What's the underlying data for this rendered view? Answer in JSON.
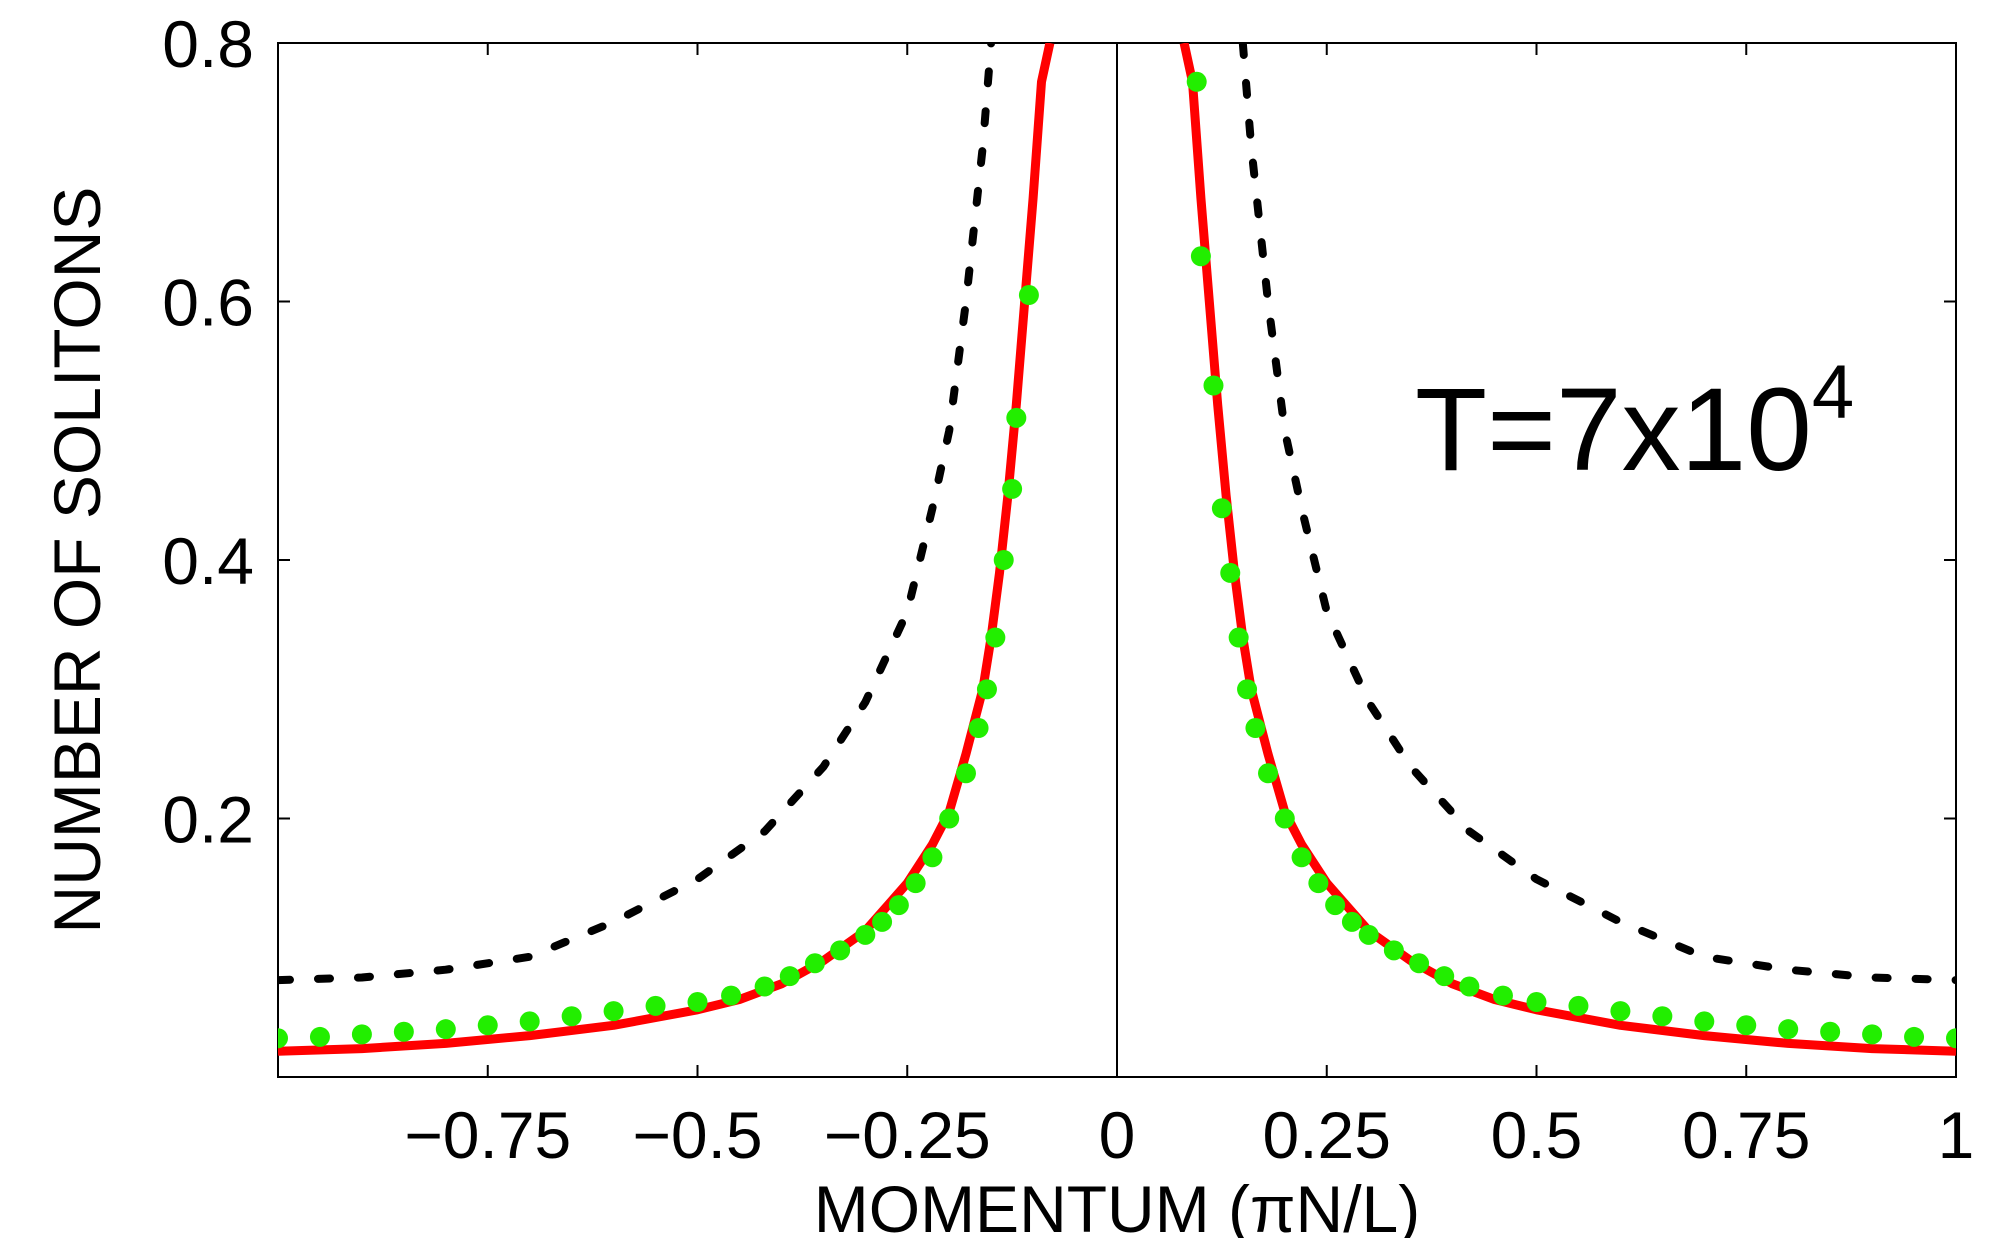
{
  "chart_data": {
    "type": "line",
    "xlabel": "MOMENTUM (πN/L)",
    "ylabel": "NUMBER OF SOLITONS",
    "annotation": {
      "base": "T=7x10",
      "exponent": "4"
    },
    "xlim": [
      -1,
      1
    ],
    "ylim": [
      0.0,
      0.8
    ],
    "x_ticks": [
      -0.75,
      -0.5,
      -0.25,
      0,
      0.25,
      0.5,
      0.75,
      1
    ],
    "x_tick_labels": [
      "−0.75",
      "−0.5",
      "−0.25",
      "0",
      "0.25",
      "0.5",
      "0.75",
      "1"
    ],
    "y_ticks": [
      0.2,
      0.4,
      0.6,
      0.8
    ],
    "y_tick_labels": [
      "0.2",
      "0.4",
      "0.6",
      "0.8"
    ],
    "grid": false,
    "center_line_x": 0,
    "colors": {
      "red": "#ff0000",
      "green": "#22ee00",
      "black": "#000000"
    },
    "series": [
      {
        "style": "dashed",
        "color": "#000000",
        "x": [
          -1.0,
          -0.9,
          -0.8,
          -0.7,
          -0.6,
          -0.5,
          -0.42,
          -0.35,
          -0.3,
          -0.25,
          -0.22,
          -0.2,
          -0.18,
          -0.16,
          -0.15,
          0.15,
          0.16,
          0.18,
          0.2,
          0.22,
          0.25,
          0.3,
          0.35,
          0.42,
          0.5,
          0.6,
          0.7,
          0.8,
          0.9,
          1.0
        ],
        "y": [
          0.075,
          0.077,
          0.083,
          0.093,
          0.12,
          0.153,
          0.19,
          0.24,
          0.29,
          0.36,
          0.44,
          0.5,
          0.6,
          0.72,
          0.8,
          0.8,
          0.72,
          0.6,
          0.5,
          0.44,
          0.36,
          0.29,
          0.24,
          0.19,
          0.153,
          0.12,
          0.093,
          0.083,
          0.077,
          0.075
        ]
      },
      {
        "style": "solid",
        "color": "#ff0000",
        "x": [
          -1.0,
          -0.9,
          -0.8,
          -0.7,
          -0.6,
          -0.5,
          -0.45,
          -0.4,
          -0.35,
          -0.3,
          -0.25,
          -0.22,
          -0.2,
          -0.18,
          -0.16,
          -0.15,
          -0.14,
          -0.13,
          -0.12,
          -0.11,
          -0.1,
          -0.09,
          -0.08,
          0.08,
          0.09,
          0.1,
          0.11,
          0.12,
          0.13,
          0.14,
          0.15,
          0.16,
          0.18,
          0.2,
          0.22,
          0.25,
          0.3,
          0.35,
          0.4,
          0.45,
          0.5,
          0.6,
          0.7,
          0.8,
          0.9,
          1.0
        ],
        "y": [
          0.02,
          0.022,
          0.026,
          0.032,
          0.04,
          0.052,
          0.06,
          0.072,
          0.09,
          0.113,
          0.15,
          0.18,
          0.205,
          0.25,
          0.3,
          0.34,
          0.39,
          0.45,
          0.52,
          0.6,
          0.68,
          0.77,
          0.8,
          0.8,
          0.77,
          0.68,
          0.6,
          0.52,
          0.45,
          0.39,
          0.34,
          0.3,
          0.25,
          0.205,
          0.18,
          0.15,
          0.113,
          0.09,
          0.072,
          0.06,
          0.052,
          0.04,
          0.032,
          0.026,
          0.022,
          0.02
        ]
      },
      {
        "style": "markers",
        "color": "#22ee00",
        "x": [
          -1.0,
          -0.95,
          -0.9,
          -0.85,
          -0.8,
          -0.75,
          -0.7,
          -0.65,
          -0.6,
          -0.55,
          -0.5,
          -0.46,
          -0.42,
          -0.39,
          -0.36,
          -0.33,
          -0.3,
          -0.28,
          -0.26,
          -0.24,
          -0.22,
          -0.2,
          -0.18,
          -0.165,
          -0.155,
          -0.145,
          -0.135,
          -0.125,
          -0.12,
          -0.105,
          0.095,
          0.1,
          0.115,
          0.125,
          0.135,
          0.145,
          0.155,
          0.165,
          0.18,
          0.2,
          0.22,
          0.24,
          0.26,
          0.28,
          0.3,
          0.33,
          0.36,
          0.39,
          0.42,
          0.46,
          0.5,
          0.55,
          0.6,
          0.65,
          0.7,
          0.75,
          0.8,
          0.85,
          0.9,
          0.95,
          1.0
        ],
        "y": [
          0.03,
          0.031,
          0.033,
          0.035,
          0.037,
          0.04,
          0.043,
          0.047,
          0.051,
          0.055,
          0.058,
          0.063,
          0.07,
          0.078,
          0.088,
          0.098,
          0.11,
          0.12,
          0.133,
          0.15,
          0.17,
          0.2,
          0.235,
          0.27,
          0.3,
          0.34,
          0.4,
          0.455,
          0.51,
          0.605,
          0.77,
          0.635,
          0.535,
          0.44,
          0.39,
          0.34,
          0.3,
          0.27,
          0.235,
          0.2,
          0.17,
          0.15,
          0.133,
          0.12,
          0.11,
          0.098,
          0.088,
          0.078,
          0.07,
          0.063,
          0.058,
          0.055,
          0.051,
          0.047,
          0.043,
          0.04,
          0.037,
          0.035,
          0.033,
          0.031,
          0.03
        ]
      }
    ]
  }
}
